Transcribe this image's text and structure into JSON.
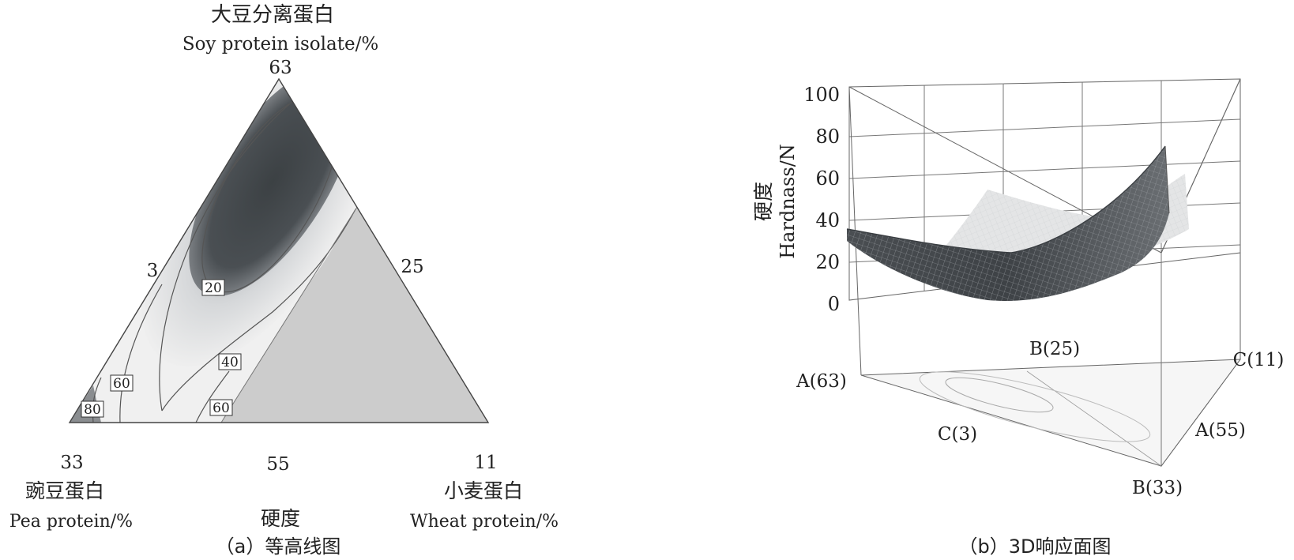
{
  "chart_data": [
    {
      "type": "contour",
      "panel_caption": "（a）等高线图",
      "title": "硬度",
      "vertices": [
        {
          "name": "Soy protein isolate/%",
          "name_cn": "大豆分离蛋白",
          "max": 63,
          "tick_label": "63"
        },
        {
          "name": "Pea protein/%",
          "name_cn": "豌豆蛋白",
          "max": 33,
          "tick_label": "33"
        },
        {
          "name": "Wheat protein/%",
          "name_cn": "小麦蛋白",
          "max": 11,
          "tick_label": "11"
        }
      ],
      "edge_labels": {
        "left": "3",
        "right": "25",
        "bottom": "55"
      },
      "contour_labels": [
        {
          "text": "20",
          "value": 20
        },
        {
          "text": "40",
          "value": 40
        },
        {
          "text": "60",
          "value": 60
        },
        {
          "text": "60",
          "value": 60
        },
        {
          "text": "80",
          "value": 80
        }
      ],
      "colors": {
        "high": "#f2f2f2",
        "low": "#4a4f53",
        "flat": "#cccccc",
        "line": "#555555"
      }
    },
    {
      "type": "surface",
      "panel_caption": "（b）3D响应面图",
      "zlabel": "硬度 Hardnass/N",
      "zlabel_lines": [
        "硬度",
        "Hardnass/N"
      ],
      "zticks": [
        "0",
        "20",
        "40",
        "60",
        "80",
        "100"
      ],
      "zlim": [
        0,
        100
      ],
      "corner_labels": {
        "left": "A(63)",
        "front_left": "C(3)",
        "back": "B(25)",
        "right_back": "C(11)",
        "right": "A(55)",
        "front": "B(33)"
      },
      "colors": {
        "surface": "#5a5e62",
        "grid": "#888888",
        "box": "#666666"
      }
    }
  ]
}
